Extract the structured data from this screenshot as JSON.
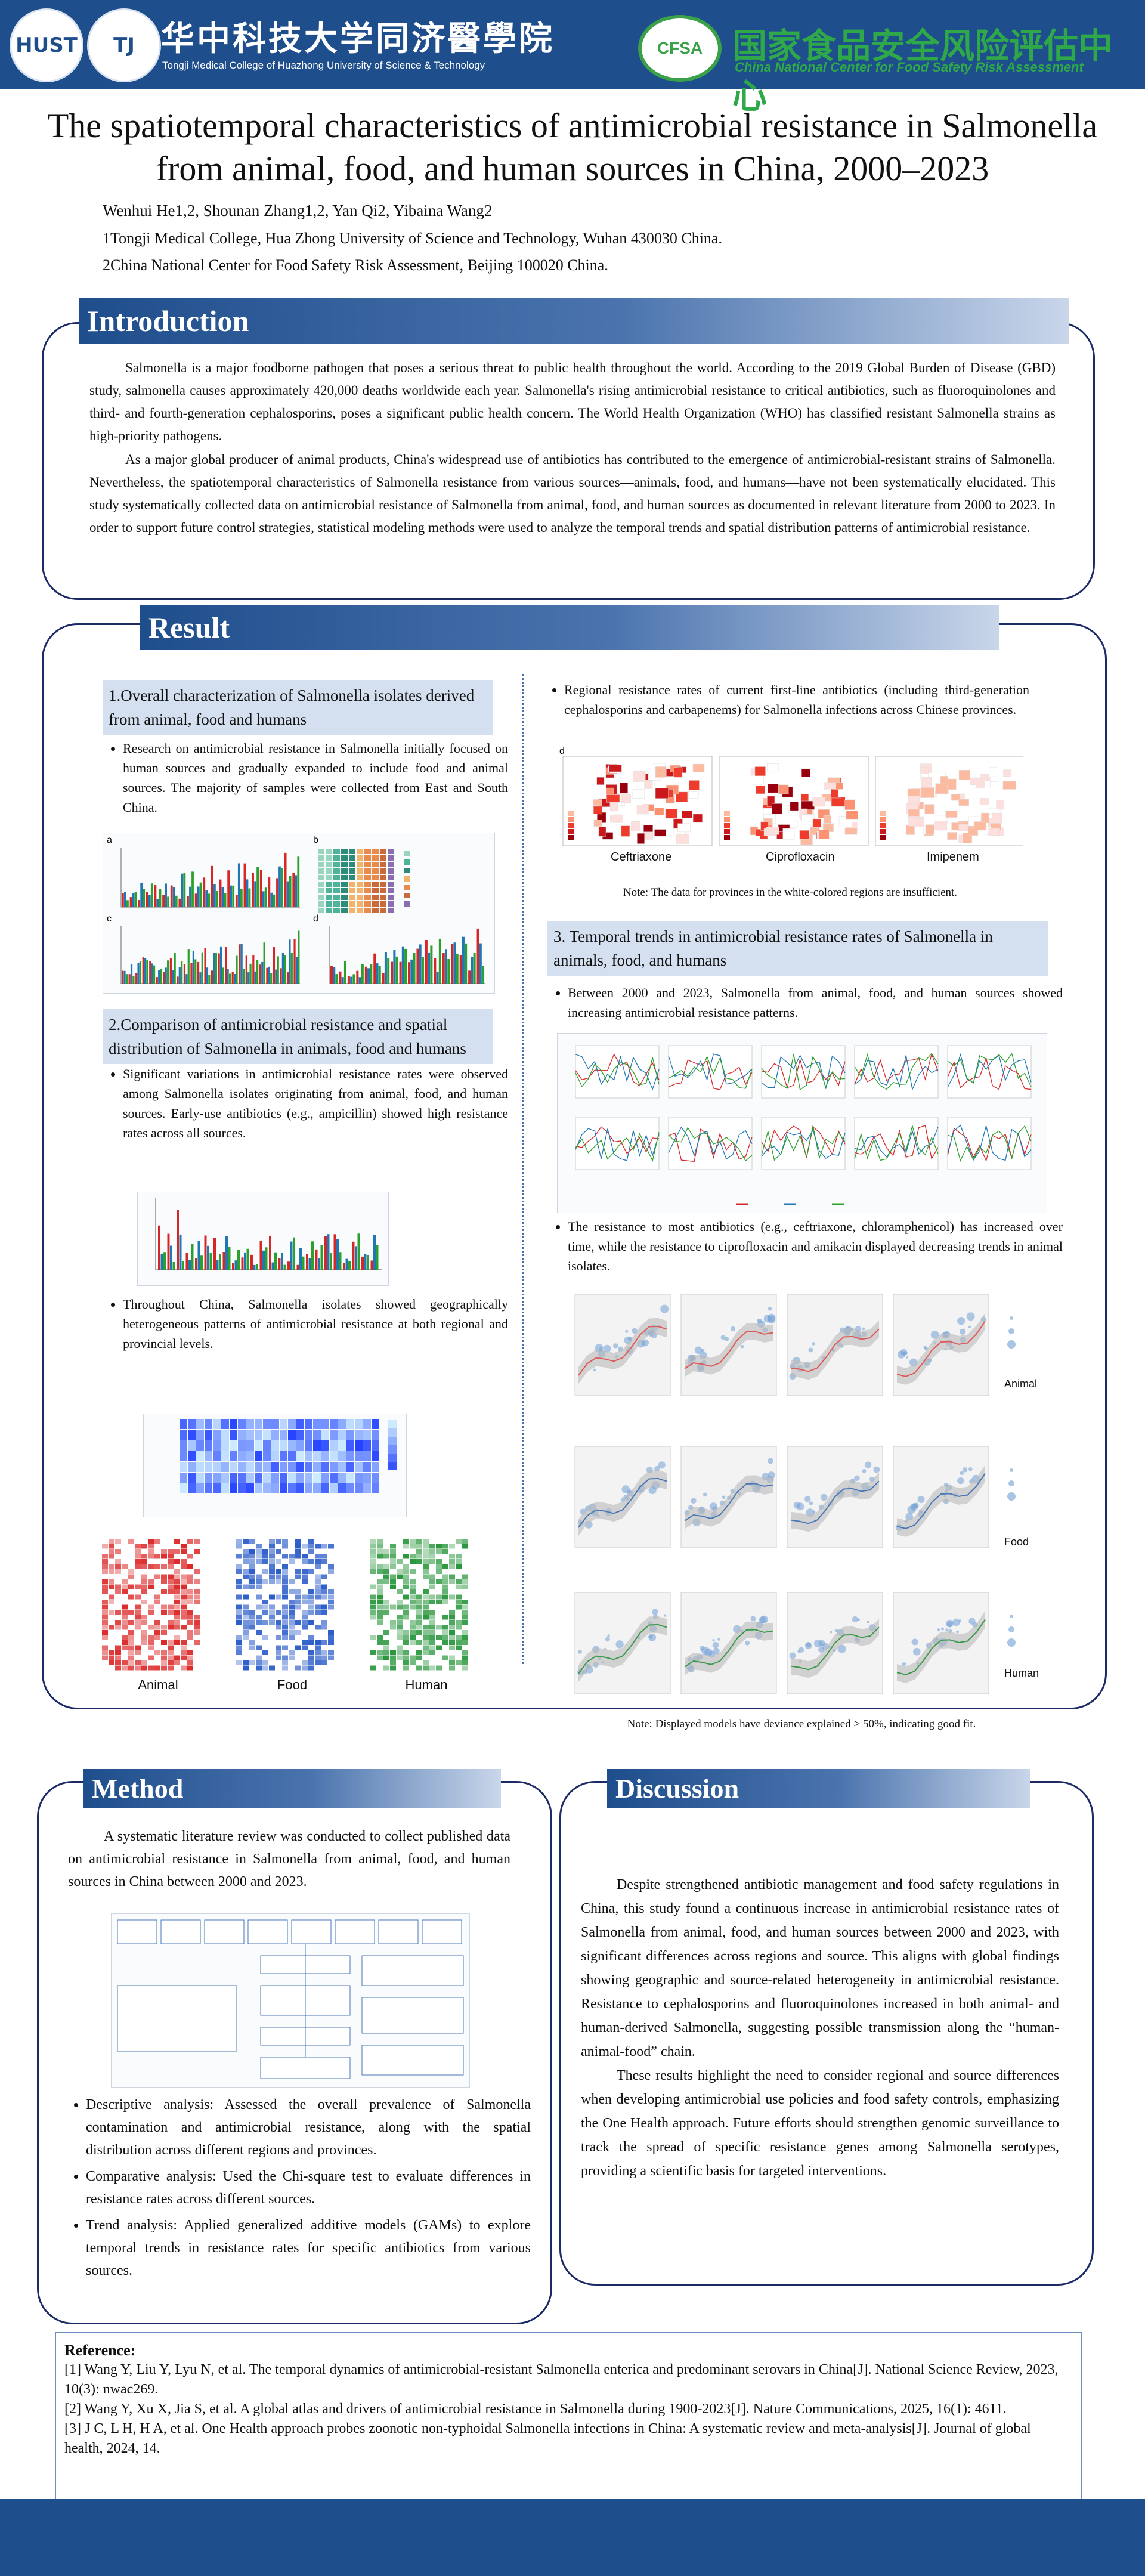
{
  "header": {
    "hust_logo_text": "HUST",
    "tj_logo_text": "TJ",
    "school_cn": "华中科技大学同济醫學院",
    "school_en": "Tongji Medical College of Huazhong University of Science & Technology",
    "cfsa_logo_text": "CFSA",
    "center_cn": "国家食品安全风险评估中心",
    "center_en": "China National Center for Food Safety Risk Assessment"
  },
  "title": "The spatiotemporal characteristics of antimicrobial resistance in Salmonella from animal, food, and human sources in China, 2000–2023",
  "authors": "Wenhui He1,2, Shounan Zhang1,2, Yan Qi2, Yibaina Wang2",
  "affiliations": [
    "1Tongji Medical College, Hua Zhong University of Science and Technology, Wuhan 430030 China.",
    "2China National Center for Food Safety Risk Assessment, Beijing 100020 China."
  ],
  "introduction": {
    "heading": "Introduction",
    "p1": "Salmonella is a major foodborne pathogen that poses a serious threat to public health throughout the world. According to the 2019 Global Burden of Disease (GBD) study, salmonella causes approximately 420,000 deaths worldwide each year. Salmonella's rising antimicrobial resistance to critical antibiotics, such as fluoroquinolones and third- and fourth-generation cephalosporins, poses a significant public health concern. The World Health Organization (WHO) has classified resistant Salmonella strains as high-priority pathogens.",
    "p2": "As a major global producer of animal products, China's widespread use of antibiotics has contributed to the emergence of antimicrobial-resistant strains of Salmonella. Nevertheless, the spatiotemporal characteristics of Salmonella resistance from various sources—animals, food, and humans—have not been systematically elucidated. This study systematically collected data on antimicrobial resistance of Salmonella from animal, food, and human sources as documented in relevant literature from 2000 to 2023. In order to support future control strategies, statistical modeling methods were used to analyze the temporal trends and spatial distribution patterns of antimicrobial resistance."
  },
  "result": {
    "heading": "Result",
    "s1_title": "1.Overall characterization of Salmonella isolates derived from animal, food and humans",
    "s1_bullet": "Research on antimicrobial resistance in Salmonella initially focused on human sources and gradually expanded to include food and animal sources. The majority of samples were collected from East and South China.",
    "s2_title": "2.Comparison of antimicrobial resistance and spatial distribution of Salmonella in animals, food and humans",
    "s2_bullet1": "Significant variations in antimicrobial resistance rates were observed among Salmonella isolates originating from animal, food, and human sources. Early-use antibiotics (e.g., ampicillin) showed high resistance rates across all sources.",
    "s2_bullet2": "Throughout China, Salmonella isolates showed geographically heterogeneous patterns of antimicrobial resistance at both regional and provincial levels.",
    "heatmap_labels": [
      "Animal",
      "Food",
      "Human"
    ],
    "right_bullet1": "Regional resistance rates of current first-line antibiotics (including third-generation cephalosporins and carbapenems) for Salmonella infections across Chinese provinces.",
    "map_labels": [
      "Ceftriaxone",
      "Ciprofloxacin",
      "Imipenem"
    ],
    "map_note": "Note: The data for provinces in the white-colored regions are insufficient.",
    "s3_title": "3. Temporal trends in antimicrobial resistance rates of Salmonella in animals, food, and humans",
    "s3_bullet1": "Between 2000 and 2023, Salmonella from animal, food, and human sources showed increasing antimicrobial resistance patterns.",
    "s3_bullet2": "The resistance to most antibiotics (e.g., ceftriaxone, chloramphenicol) has increased over time, while the resistance to ciprofloxacin and amikacin displayed decreasing trends in animal isolates.",
    "gam_rows": [
      "Animal",
      "Food",
      "Human"
    ],
    "gam_note": "Note: Displayed models have deviance explained > 50%, indicating good fit."
  },
  "method": {
    "heading": "Method",
    "p1": "A systematic literature review was conducted to collect published data on antimicrobial resistance in Salmonella from animal, food, and human sources in China between 2000 and 2023.",
    "bullets": [
      "Descriptive analysis: Assessed the overall prevalence of Salmonella contamination and antimicrobial resistance, along with the spatial distribution across different regions and provinces.",
      "Comparative analysis: Used the Chi-square test to evaluate differences in resistance rates across different sources.",
      "Trend analysis: Applied generalized additive models (GAMs) to explore temporal trends in resistance rates for specific antibiotics from various sources."
    ]
  },
  "discussion": {
    "heading": "Discussion",
    "p1": "Despite strengthened antibiotic management and food safety regulations in China, this study found a continuous increase in antimicrobial resistance rates of Salmonella from animal, food, and human sources between 2000 and 2023, with significant differences across regions and source. This aligns with global findings showing geographic and source-related heterogeneity in antimicrobial resistance. Resistance to cephalosporins and fluoroquinolones increased in both animal- and human-derived Salmonella, suggesting possible transmission along the “human-animal-food” chain.",
    "p2": "These results highlight the need to consider regional and source differences when developing antimicrobial use policies and food safety controls, emphasizing the One Health approach. Future efforts should strengthen genomic surveillance to track the spread of specific resistance genes among Salmonella serotypes, providing a scientific basis for targeted interventions."
  },
  "references": {
    "heading": "Reference:",
    "items": [
      "[1] Wang Y, Liu Y, Lyu N, et al. The temporal dynamics of antimicrobial-resistant Salmonella enterica and predominant serovars in China[J]. National Science Review, 2023, 10(3): nwac269.",
      "[2] Wang Y, Xu X, Jia S, et al. A global atlas and drivers of antimicrobial resistance in Salmonella during 1900-2023[J]. Nature Communications, 2025, 16(1): 4611.",
      "[3] J C, L H, H A, et al. One Health approach probes zoonotic non-typhoidal Salmonella infections in China: A systematic review and meta-analysis[J]. Journal of global health, 2024, 14."
    ]
  },
  "colors": {
    "primary": "#1f4e8c",
    "subhead_bg": "#d4e0ef",
    "cfsa_green": "#2fa84a",
    "animal": "#d62728",
    "food": "#1f77b4",
    "human": "#2ca02c"
  }
}
